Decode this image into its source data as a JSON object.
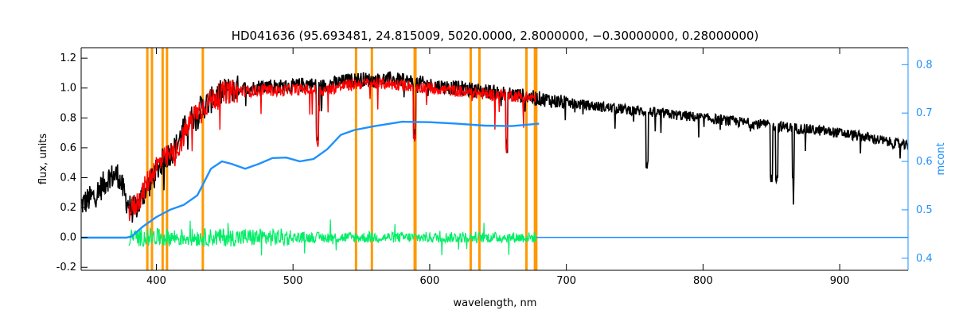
{
  "chart_data": {
    "type": "line",
    "title": "HD041636    (95.693481, 24.815009, 5020.0000, 2.8000000, −0.30000000, 0.28000000)",
    "xlabel": "wavelength, nm",
    "ylabel": "flux, units",
    "y2label": "mcont",
    "xlim": [
      345,
      950
    ],
    "ylim": [
      -0.22,
      1.27
    ],
    "y2lim": [
      0.375,
      0.835
    ],
    "xticks": [
      400,
      500,
      600,
      700,
      800,
      900
    ],
    "yticks": [
      -0.2,
      0.0,
      0.2,
      0.4,
      0.6,
      0.8,
      1.0,
      1.2
    ],
    "y2ticks": [
      0.4,
      0.5,
      0.6,
      0.7,
      0.8
    ],
    "grid": false,
    "vlines": [
      393.4,
      396.8,
      404.6,
      407.8,
      434.0,
      546.1,
      557.7,
      589.0,
      589.6,
      630.0,
      636.4,
      670.8,
      677.0,
      678.0
    ],
    "colors": {
      "observed": "#000000",
      "model": "#ff0000",
      "residual": "#00ee66",
      "continuum": "#1e90ff",
      "vline": "#ff9900",
      "axis2": "#1e90ff"
    },
    "series": [
      {
        "key": "observed",
        "axis": "left",
        "x": [
          345,
          355,
          365,
          372,
          378,
          382,
          387,
          392,
          397,
          402,
          408,
          414,
          420,
          426,
          432,
          438,
          444,
          450,
          460,
          470,
          480,
          490,
          500,
          510,
          520,
          530,
          540,
          550,
          560,
          570,
          580,
          590,
          600,
          620,
          640,
          660,
          680,
          700,
          720,
          740,
          760,
          780,
          800,
          820,
          840,
          860,
          880,
          900,
          920,
          940,
          950
        ],
        "y": [
          0.22,
          0.28,
          0.4,
          0.42,
          0.25,
          0.18,
          0.22,
          0.32,
          0.38,
          0.48,
          0.55,
          0.6,
          0.72,
          0.8,
          0.86,
          0.9,
          0.95,
          0.98,
          1.0,
          1.0,
          1.02,
          1.01,
          1.01,
          1.03,
          1.01,
          1.03,
          1.05,
          1.06,
          1.05,
          1.06,
          1.05,
          1.04,
          1.02,
          1.0,
          0.98,
          0.96,
          0.93,
          0.9,
          0.88,
          0.86,
          0.84,
          0.82,
          0.8,
          0.78,
          0.76,
          0.74,
          0.72,
          0.7,
          0.67,
          0.63,
          0.61
        ]
      },
      {
        "key": "model",
        "axis": "left",
        "x": [
          380,
          385,
          390,
          395,
          400,
          405,
          410,
          415,
          420,
          425,
          430,
          435,
          440,
          445,
          450,
          460,
          470,
          480,
          490,
          500,
          510,
          520,
          530,
          540,
          550,
          560,
          570,
          580,
          590,
          600,
          620,
          640,
          660,
          678
        ],
        "y": [
          0.18,
          0.22,
          0.3,
          0.4,
          0.48,
          0.52,
          0.55,
          0.58,
          0.68,
          0.78,
          0.85,
          0.88,
          0.92,
          0.95,
          0.97,
          0.98,
          0.98,
          0.99,
          0.98,
          0.99,
          0.99,
          0.98,
          1.0,
          1.02,
          1.03,
          1.03,
          1.03,
          1.02,
          1.01,
          1.0,
          0.98,
          0.96,
          0.95,
          0.93
        ]
      },
      {
        "key": "continuum",
        "axis": "right",
        "x": [
          345,
          378,
          382,
          390,
          400,
          410,
          420,
          430,
          440,
          448,
          455,
          465,
          475,
          485,
          495,
          505,
          515,
          525,
          535,
          545,
          560,
          580,
          600,
          620,
          640,
          660,
          680
        ],
        "y": [
          0.4425,
          0.4425,
          0.445,
          0.465,
          0.485,
          0.5,
          0.51,
          0.53,
          0.585,
          0.6,
          0.595,
          0.585,
          0.595,
          0.607,
          0.608,
          0.6,
          0.605,
          0.625,
          0.655,
          0.665,
          0.673,
          0.682,
          0.681,
          0.678,
          0.674,
          0.673,
          0.678
        ]
      }
    ],
    "annotations": {
      "residual_baseline": 0.0,
      "residual_xrange": [
        380,
        678
      ],
      "residual_amplitude": 0.06,
      "observed_notch_lines_nm": [
        518,
        589,
        656.3,
        759,
        850,
        854,
        866
      ]
    }
  }
}
